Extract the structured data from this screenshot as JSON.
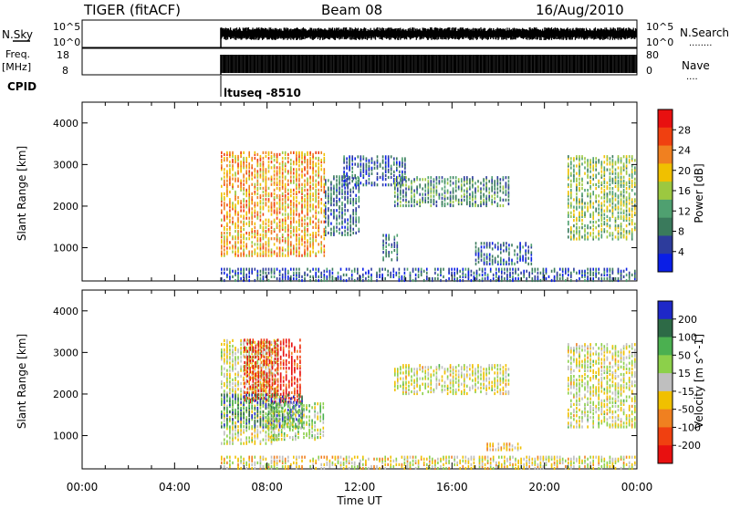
{
  "header": {
    "radar": "TIGER (fitACF)",
    "beam": "Beam 08",
    "date": "16/Aug/2010"
  },
  "status_panel": {
    "left_top": "N.Sky",
    "left_freq_1": "Freq.",
    "left_freq_2": "[MHz]",
    "left_cpid": "CPID",
    "right_top": "N.Search",
    "right_top_dots": "........",
    "right_mid": "Nave",
    "right_mid_dots": "....",
    "noise_ticks": [
      "10^5",
      "10^0"
    ],
    "freq_ticks": [
      "18",
      "8"
    ],
    "nave_ticks": [
      "80",
      "0"
    ],
    "cpid_label": "ltuseq -8510"
  },
  "x_axis": {
    "label": "Time UT",
    "ticks": [
      "00:00",
      "04:00",
      "08:00",
      "12:00",
      "16:00",
      "20:00",
      "00:00"
    ]
  },
  "y_axis": {
    "label": "Slant Range [km]",
    "ticks": [
      "4000",
      "3000",
      "2000",
      "1000"
    ]
  },
  "colors": {
    "power": [
      "#0a1ee6",
      "#2d3c9c",
      "#3a7a5c",
      "#4fa070",
      "#9cc840",
      "#f0c000",
      "#f08020",
      "#f04010",
      "#e81010"
    ],
    "velocity": [
      "#1e28c8",
      "#2d6a46",
      "#4bb050",
      "#8cd04a",
      "#bfbfbf",
      "#f0c000",
      "#f08020",
      "#f04010",
      "#e81010"
    ]
  },
  "chart_data": [
    {
      "type": "heatmap",
      "title": "",
      "xlabel": "Time UT",
      "ylabel": "Slant Range [km]",
      "x_range_hours": [
        0,
        24
      ],
      "ylim": [
        200,
        4500
      ],
      "colorbar": {
        "label": "Power [dB]",
        "ticks": [
          "28",
          "24",
          "20",
          "16",
          "12",
          "8",
          "4"
        ],
        "range": [
          0,
          30
        ]
      },
      "echo_regions": [
        {
          "t": [
            6.0,
            10.5
          ],
          "range_km": [
            800,
            3300
          ],
          "value": 20
        },
        {
          "t": [
            10.5,
            12.0
          ],
          "range_km": [
            1300,
            2700
          ],
          "value": 8
        },
        {
          "t": [
            11.3,
            14.0
          ],
          "range_km": [
            2500,
            3200
          ],
          "value": 6
        },
        {
          "t": [
            13.5,
            18.5
          ],
          "range_km": [
            2000,
            2700
          ],
          "value": 10
        },
        {
          "t": [
            13.0,
            13.6
          ],
          "range_km": [
            700,
            1300
          ],
          "value": 8
        },
        {
          "t": [
            17.0,
            19.5
          ],
          "range_km": [
            600,
            1100
          ],
          "value": 6
        },
        {
          "t": [
            21.0,
            24.0
          ],
          "range_km": [
            1200,
            3200
          ],
          "value": 14
        },
        {
          "t": [
            6.0,
            24.0
          ],
          "range_km": [
            200,
            500
          ],
          "value": 6
        }
      ]
    },
    {
      "type": "heatmap",
      "title": "",
      "xlabel": "Time UT",
      "ylabel": "Slant Range [km]",
      "x_range_hours": [
        0,
        24
      ],
      "ylim": [
        200,
        4500
      ],
      "colorbar": {
        "label": "Velocity [m s^-1]",
        "ticks": [
          "200",
          "100",
          "50",
          "15",
          "-15",
          "-50",
          "-100",
          "-200"
        ],
        "range": [
          -250,
          250
        ]
      },
      "echo_regions": [
        {
          "t": [
            6.0,
            8.5
          ],
          "range_km": [
            800,
            3300
          ],
          "value": 0
        },
        {
          "t": [
            7.0,
            9.5
          ],
          "range_km": [
            1800,
            3300
          ],
          "value": -200
        },
        {
          "t": [
            6.0,
            9.5
          ],
          "range_km": [
            1200,
            2000
          ],
          "value": 150
        },
        {
          "t": [
            8.0,
            10.5
          ],
          "range_km": [
            900,
            1800
          ],
          "value": 40
        },
        {
          "t": [
            13.5,
            18.5
          ],
          "range_km": [
            2000,
            2700
          ],
          "value": 0
        },
        {
          "t": [
            17.5,
            19.0
          ],
          "range_km": [
            650,
            800
          ],
          "value": -60
        },
        {
          "t": [
            21.0,
            24.0
          ],
          "range_km": [
            1200,
            3200
          ],
          "value": 0
        },
        {
          "t": [
            6.0,
            24.0
          ],
          "range_km": [
            200,
            500
          ],
          "value": -20
        }
      ]
    }
  ]
}
